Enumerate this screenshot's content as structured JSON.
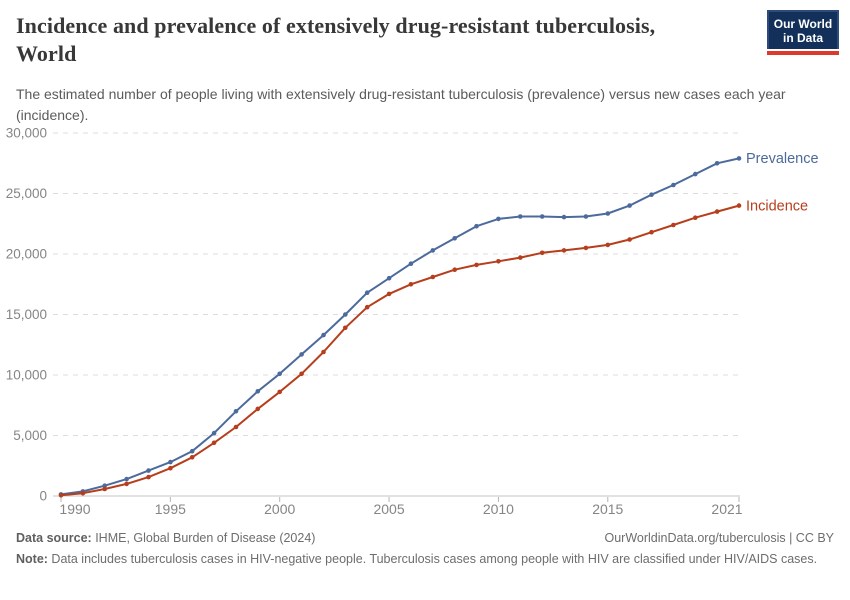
{
  "header": {
    "title_line1": "Incidence and prevalence of extensively drug-resistant tuberculosis,",
    "title_line2": "World",
    "subtitle": "The estimated number of people living with extensively drug-resistant tuberculosis (prevalence) versus new cases each year (incidence).",
    "logo": {
      "line1": "Our World",
      "line2": "in Data"
    }
  },
  "chart_data": {
    "type": "line",
    "title": "Incidence and prevalence of extensively drug-resistant tuberculosis, World",
    "xlabel": "",
    "ylabel": "",
    "xlim": [
      1990,
      2021
    ],
    "ylim": [
      0,
      30000
    ],
    "grid": "horizontal-dashed",
    "legend_position": "line-end-labels",
    "xticks": [
      1990,
      1995,
      2000,
      2005,
      2010,
      2015,
      2021
    ],
    "yticks": [
      0,
      5000,
      10000,
      15000,
      20000,
      25000,
      30000
    ],
    "x": [
      1990,
      1991,
      1992,
      1993,
      1994,
      1995,
      1996,
      1997,
      1998,
      1999,
      2000,
      2001,
      2002,
      2003,
      2004,
      2005,
      2006,
      2007,
      2008,
      2009,
      2010,
      2011,
      2012,
      2013,
      2014,
      2015,
      2016,
      2017,
      2018,
      2019,
      2020,
      2021
    ],
    "series": [
      {
        "name": "Prevalence",
        "color": "#4c6a9c",
        "values": [
          130,
          380,
          850,
          1400,
          2100,
          2800,
          3700,
          5200,
          7000,
          8650,
          10100,
          11700,
          13300,
          15000,
          16800,
          18000,
          19200,
          20300,
          21300,
          22300,
          22900,
          23100,
          23100,
          23050,
          23100,
          23350,
          24000,
          24900,
          25700,
          26600,
          27500,
          27900
        ]
      },
      {
        "name": "Incidence",
        "color": "#b63e1c",
        "values": [
          60,
          230,
          580,
          1000,
          1560,
          2300,
          3200,
          4400,
          5700,
          7200,
          8600,
          10100,
          11900,
          13900,
          15600,
          16700,
          17500,
          18100,
          18700,
          19100,
          19400,
          19700,
          20100,
          20300,
          20500,
          20750,
          21200,
          21800,
          22400,
          23000,
          23500,
          24000
        ]
      }
    ],
    "colors": {
      "grid": "#dcdcdc",
      "zero_axis": "#c6c6c6",
      "tick": "#b5b5b5",
      "axis_text": "#858585"
    }
  },
  "footer": {
    "source_label": "Data source:",
    "source_text": " IHME, Global Burden of Disease (2024)",
    "link": "OurWorldinData.org/tuberculosis | CC BY",
    "note_label": "Note:",
    "note_text": " Data includes tuberculosis cases in HIV-negative people. Tuberculosis cases among people with HIV are classified under HIV/AIDS cases."
  }
}
